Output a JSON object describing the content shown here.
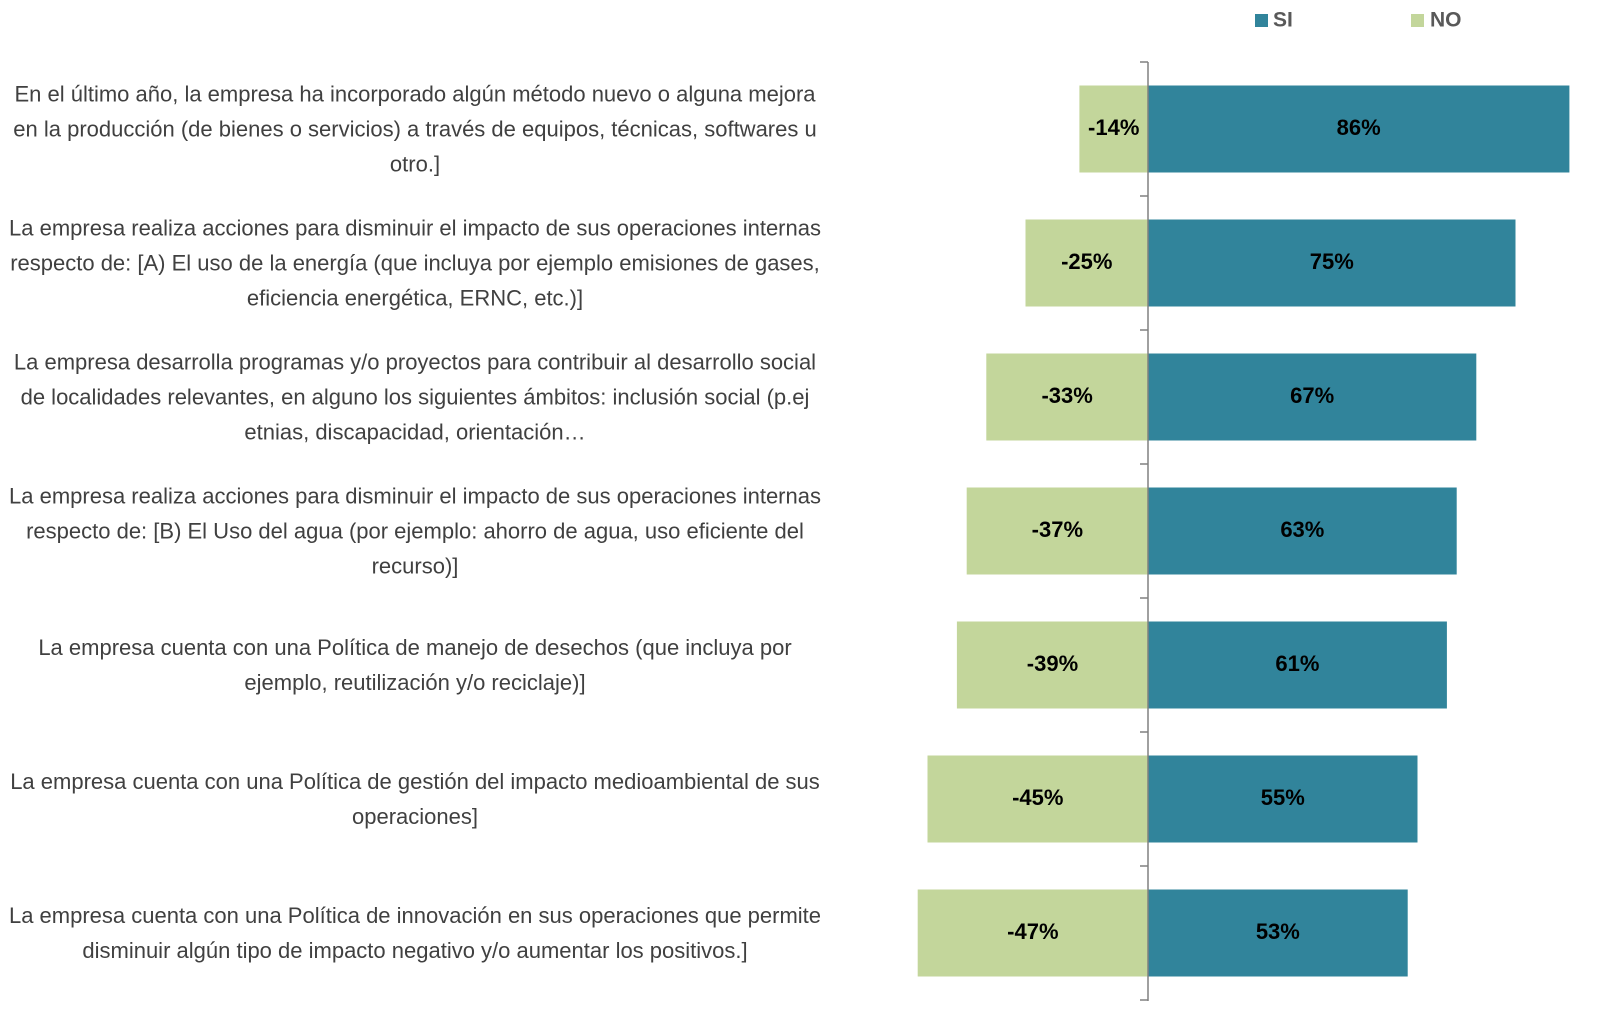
{
  "chart_data": {
    "type": "diverging_bar",
    "categories": [
      "En el último año, la empresa  ha incorporado algún método nuevo o alguna mejora en la producción (de bienes o servicios)  a través de equipos, técnicas, softwares u otro.]",
      "La empresa realiza  acciones para disminuir el impacto de sus operaciones internas respecto de: [A) El uso de la energía (que incluya por ejemplo emisiones de gases,  eficiencia energética, ERNC, etc.)]",
      "La empresa desarrolla programas y/o proyectos para  contribuir al desarrollo social de localidades relevantes, en alguno los siguientes ámbitos: inclusión social (p.ej etnias, discapacidad, orientación…",
      "La empresa realiza  acciones para disminuir el impacto de sus operaciones internas respecto de: [B) El Uso del agua (por ejemplo: ahorro de agua, uso eficiente del recurso)]",
      "La empresa cuenta con una Política de manejo de desechos (que incluya por ejemplo, reutilización y/o reciclaje)]",
      "La empresa cuenta con una Política de gestión del impacto medioambiental de sus operaciones]",
      "La empresa cuenta con una Política de innovación en sus operaciones que permite disminuir algún tipo de impacto negativo y/o aumentar los positivos.]"
    ],
    "series": [
      {
        "name": "SI",
        "color": "#31849b",
        "values": [
          86,
          75,
          67,
          63,
          61,
          55,
          53
        ],
        "value_labels": [
          "86%",
          "75%",
          "67%",
          "63%",
          "61%",
          "55%",
          "53%"
        ]
      },
      {
        "name": "NO",
        "color": "#c3d69b",
        "values": [
          -14,
          -25,
          -33,
          -37,
          -39,
          -45,
          -47
        ],
        "value_labels": [
          "-14%",
          "-25%",
          "-33%",
          "-37%",
          "-39%",
          "-45%",
          "-47%"
        ]
      }
    ],
    "xlim": [
      -50,
      90
    ]
  }
}
